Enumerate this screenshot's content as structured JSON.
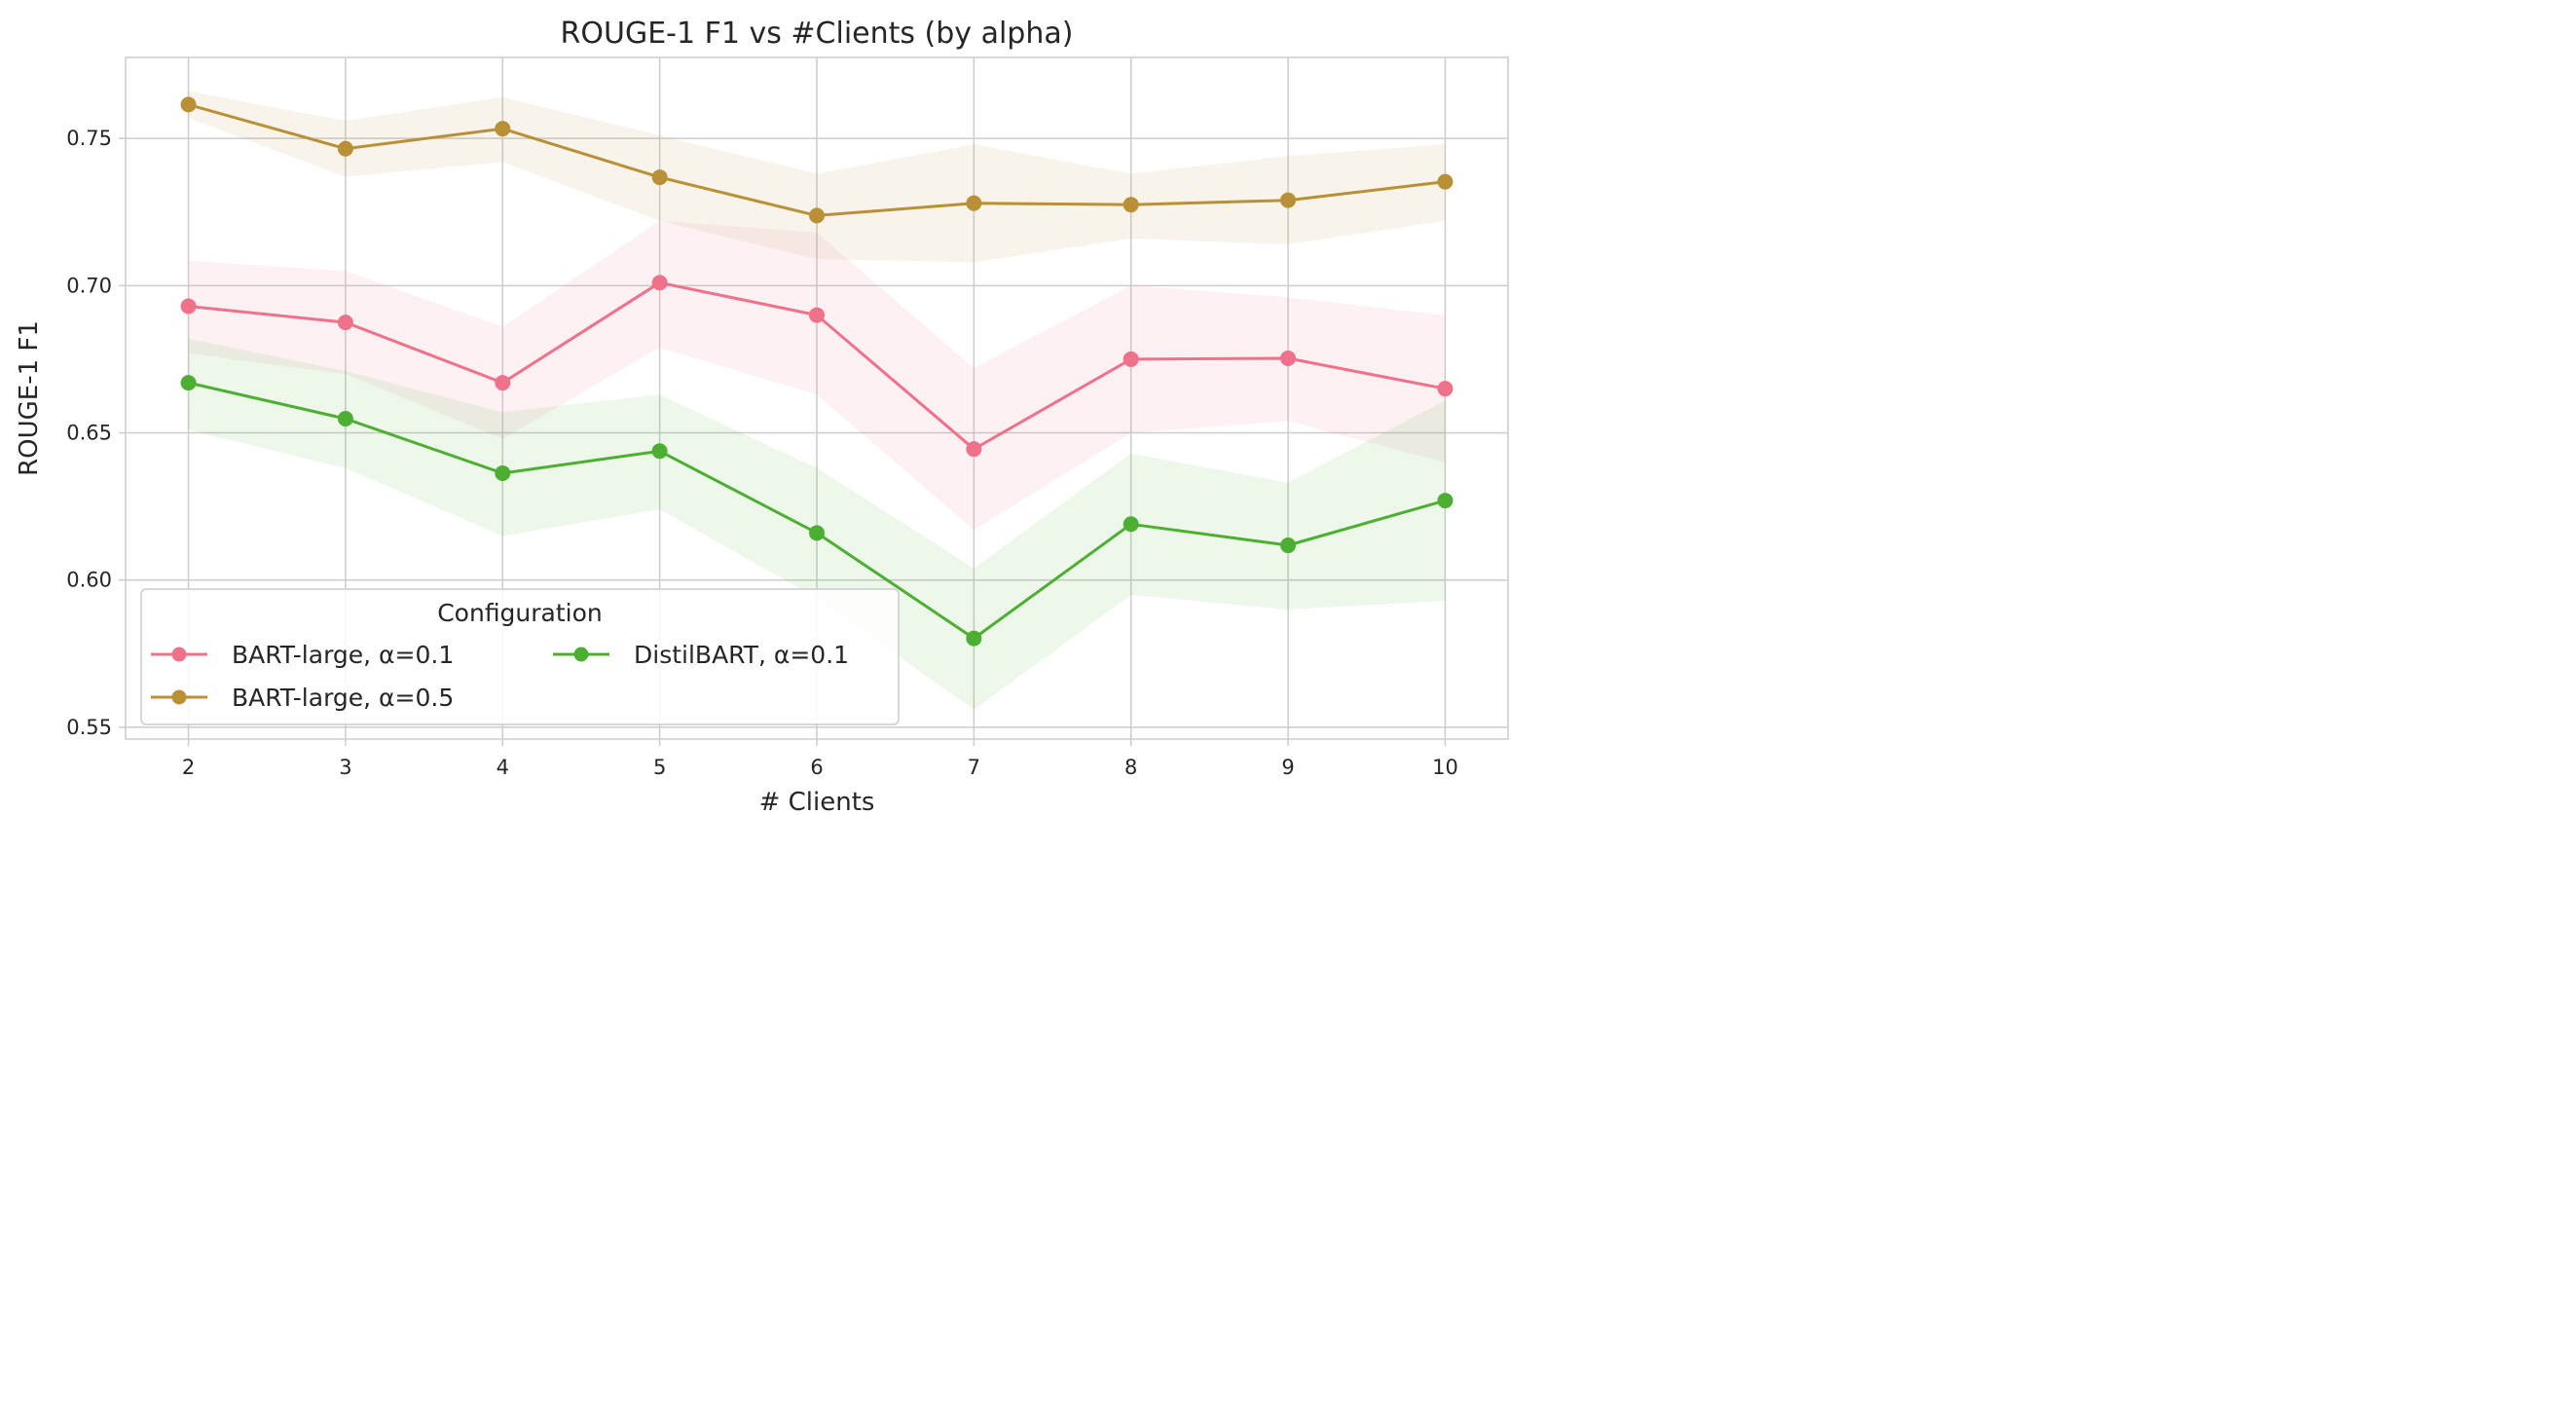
{
  "chart_data": {
    "type": "line",
    "title": "ROUGE-1 F1 vs #Clients (by alpha)",
    "xlabel": "# Clients",
    "ylabel": "ROUGE-1 F1",
    "x": [
      2,
      3,
      4,
      5,
      6,
      7,
      8,
      9,
      10
    ],
    "x_tick_labels": [
      "2",
      "3",
      "4",
      "5",
      "6",
      "7",
      "8",
      "9",
      "10"
    ],
    "y_ticks": [
      0.55,
      0.6,
      0.65,
      0.7,
      0.75
    ],
    "y_tick_labels": [
      "0.55",
      "0.60",
      "0.65",
      "0.70",
      "0.75"
    ],
    "xlim": [
      1.6,
      10.4
    ],
    "ylim": [
      0.546,
      0.7775
    ],
    "grid": true,
    "legend": {
      "title": "Configuration",
      "placement": "lower-left",
      "columns": 2
    },
    "series": [
      {
        "name": "BART-large, α=0.1",
        "color": "#f0718a",
        "values": [
          0.693,
          0.6875,
          0.667,
          0.701,
          0.69,
          0.6445,
          0.675,
          0.6753,
          0.665
        ],
        "band_upper": [
          0.7085,
          0.705,
          0.686,
          0.722,
          0.718,
          0.672,
          0.7,
          0.696,
          0.69
        ],
        "band_lower": [
          0.677,
          0.67,
          0.648,
          0.679,
          0.663,
          0.617,
          0.65,
          0.654,
          0.64
        ]
      },
      {
        "name": "BART-large, α=0.5",
        "color": "#b99036",
        "values": [
          0.7615,
          0.7465,
          0.7533,
          0.7368,
          0.7238,
          0.728,
          0.7275,
          0.729,
          0.7353
        ],
        "band_upper": [
          0.766,
          0.756,
          0.764,
          0.751,
          0.738,
          0.748,
          0.738,
          0.744,
          0.748
        ],
        "band_lower": [
          0.757,
          0.737,
          0.742,
          0.722,
          0.709,
          0.708,
          0.716,
          0.714,
          0.722
        ]
      },
      {
        "name": "DistilBART, α=0.1",
        "color": "#4daf31",
        "values": [
          0.667,
          0.6548,
          0.6363,
          0.6438,
          0.616,
          0.5802,
          0.619,
          0.6118,
          0.627
        ],
        "band_upper": [
          0.682,
          0.671,
          0.657,
          0.663,
          0.638,
          0.604,
          0.643,
          0.633,
          0.661
        ],
        "band_lower": [
          0.651,
          0.638,
          0.615,
          0.624,
          0.594,
          0.556,
          0.595,
          0.59,
          0.593
        ]
      }
    ]
  }
}
